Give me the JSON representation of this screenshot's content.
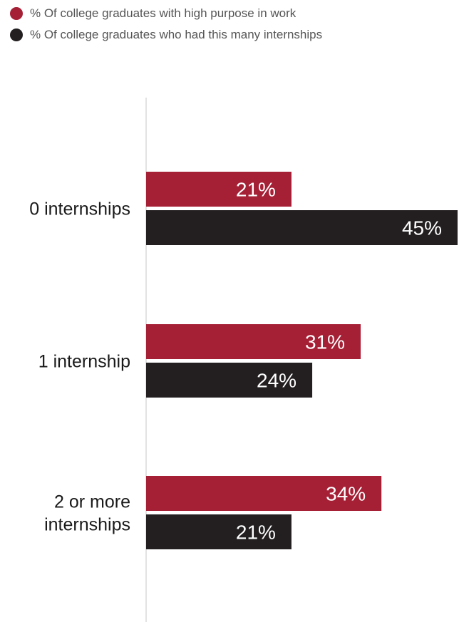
{
  "legend": [
    {
      "label": "% Of college graduates with high purpose in work",
      "color": "#a51f35"
    },
    {
      "label": "% Of college graduates who had this many internships",
      "color": "#231f20"
    }
  ],
  "chart_data": {
    "type": "bar",
    "orientation": "horizontal",
    "categories": [
      [
        "0 internships"
      ],
      [
        "1 internship"
      ],
      [
        "2 or more",
        "internships"
      ]
    ],
    "series": [
      {
        "name": "% Of college graduates with high purpose in work",
        "color": "#a51f35",
        "values": [
          21,
          31,
          34
        ],
        "labels": [
          "21%",
          "31%",
          "34%"
        ]
      },
      {
        "name": "% Of college graduates who had this many internships",
        "color": "#231f20",
        "values": [
          45,
          24,
          21
        ],
        "labels": [
          "45%",
          "24%",
          "21%"
        ]
      }
    ],
    "xlim": [
      0,
      45
    ],
    "grid": false,
    "legend_position": "top-left"
  }
}
